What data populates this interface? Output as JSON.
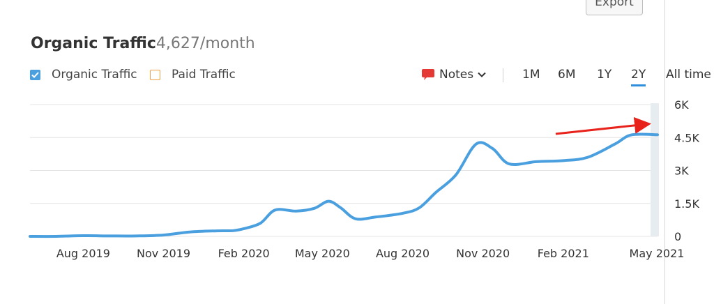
{
  "export_label": "Export",
  "title": "Organic Traffic",
  "current_value": "4,627/month",
  "legend": [
    {
      "label": "Organic Traffic",
      "checked": true,
      "color": "#4a9fdf"
    },
    {
      "label": "Paid Traffic",
      "checked": false,
      "color": "#f0a040"
    }
  ],
  "notes_label": "Notes",
  "ranges": [
    "1M",
    "6M",
    "1Y",
    "2Y",
    "All time"
  ],
  "active_range": "2Y",
  "chart_data": {
    "type": "line",
    "series": [
      {
        "name": "Organic Traffic",
        "color": "#4a9fdf",
        "x": [
          "2019-06-01",
          "2019-07-01",
          "2019-08-01",
          "2019-09-01",
          "2019-10-01",
          "2019-11-01",
          "2019-12-01",
          "2020-01-01",
          "2020-01-20",
          "2020-02-01",
          "2020-02-20",
          "2020-03-08",
          "2020-04-01",
          "2020-04-22",
          "2020-05-08",
          "2020-05-22",
          "2020-06-08",
          "2020-07-01",
          "2020-08-01",
          "2020-08-20",
          "2020-09-08",
          "2020-10-01",
          "2020-10-24",
          "2020-11-12",
          "2020-12-01",
          "2021-01-01",
          "2021-02-01",
          "2021-03-01",
          "2021-04-01",
          "2021-04-20",
          "2021-05-20"
        ],
        "values": [
          0,
          0,
          30,
          20,
          20,
          60,
          200,
          250,
          260,
          350,
          600,
          1200,
          1150,
          1280,
          1600,
          1300,
          800,
          880,
          1050,
          1300,
          2000,
          2800,
          4200,
          4000,
          3300,
          3400,
          3450,
          3600,
          4200,
          4620,
          4627
        ]
      }
    ],
    "x_ticks": [
      "Aug 2019",
      "Nov 2019",
      "Feb 2020",
      "May 2020",
      "Aug 2020",
      "Nov 2020",
      "Feb 2021",
      "May 2021"
    ],
    "y_ticks": [
      "0",
      "1.5K",
      "3K",
      "4.5K",
      "6K"
    ],
    "ylim": [
      0,
      6000
    ],
    "grid": true
  }
}
